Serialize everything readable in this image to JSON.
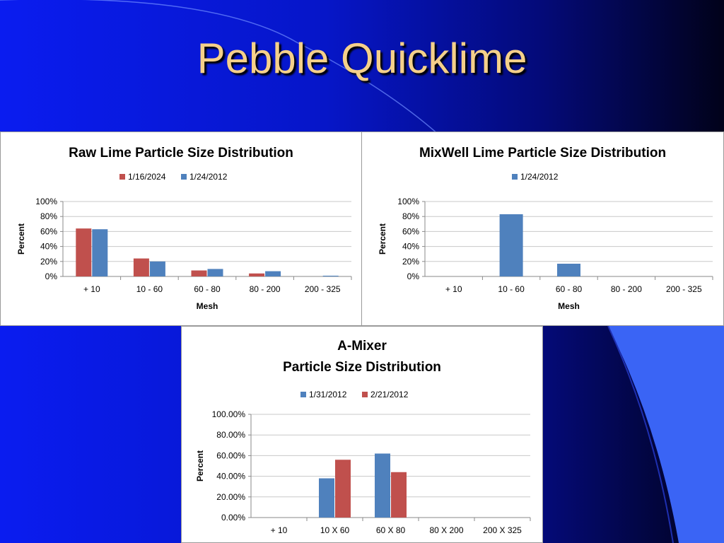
{
  "slide": {
    "title": "Pebble Quicklime"
  },
  "colors": {
    "red_series": "#c0504d",
    "blue_series": "#4f81bd",
    "grid": "#c8c8c8"
  },
  "chart_data": [
    {
      "id": "raw",
      "type": "bar",
      "title": [
        "Raw Lime Particle Size Distribution"
      ],
      "xlabel": "Mesh",
      "ylabel": "Percent",
      "ylim": [
        0,
        100
      ],
      "yticks": [
        "0%",
        "20%",
        "40%",
        "60%",
        "80%",
        "100%"
      ],
      "grid": true,
      "legend": "top",
      "categories": [
        "+ 10",
        "10 - 60",
        "60 - 80",
        "80 - 200",
        "200 - 325"
      ],
      "series": [
        {
          "name": "1/16/2024",
          "color": "#c0504d",
          "values": [
            64,
            24,
            8,
            4,
            0
          ]
        },
        {
          "name": "1/24/2012",
          "color": "#4f81bd",
          "values": [
            63,
            20,
            10,
            7,
            1
          ]
        }
      ]
    },
    {
      "id": "mix",
      "type": "bar",
      "title": [
        "MixWell Lime Particle Size Distribution"
      ],
      "xlabel": "Mesh",
      "ylabel": "Percent",
      "ylim": [
        0,
        100
      ],
      "yticks": [
        "0%",
        "20%",
        "40%",
        "60%",
        "80%",
        "100%"
      ],
      "grid": true,
      "legend": "top",
      "categories": [
        "+ 10",
        "10 - 60",
        "60 - 80",
        "80 - 200",
        "200 - 325"
      ],
      "series": [
        {
          "name": "1/24/2012",
          "color": "#4f81bd",
          "values": [
            0,
            83,
            17,
            0,
            0
          ]
        }
      ]
    },
    {
      "id": "amix",
      "type": "bar",
      "title": [
        "A-Mixer",
        "Particle Size Distribution"
      ],
      "xlabel": "",
      "ylabel": "Percent",
      "ylim": [
        0,
        100
      ],
      "yticks": [
        "0.00%",
        "20.00%",
        "40.00%",
        "60.00%",
        "80.00%",
        "100.00%"
      ],
      "grid": true,
      "legend": "top",
      "categories": [
        "+ 10",
        "10 X 60",
        "60 X 80",
        "80 X 200",
        "200 X 325"
      ],
      "series": [
        {
          "name": "1/31/2012",
          "color": "#4f81bd",
          "values": [
            0,
            38,
            62,
            0,
            0
          ]
        },
        {
          "name": "2/21/2012",
          "color": "#c0504d",
          "values": [
            0,
            56,
            44,
            0,
            0
          ]
        }
      ]
    }
  ]
}
